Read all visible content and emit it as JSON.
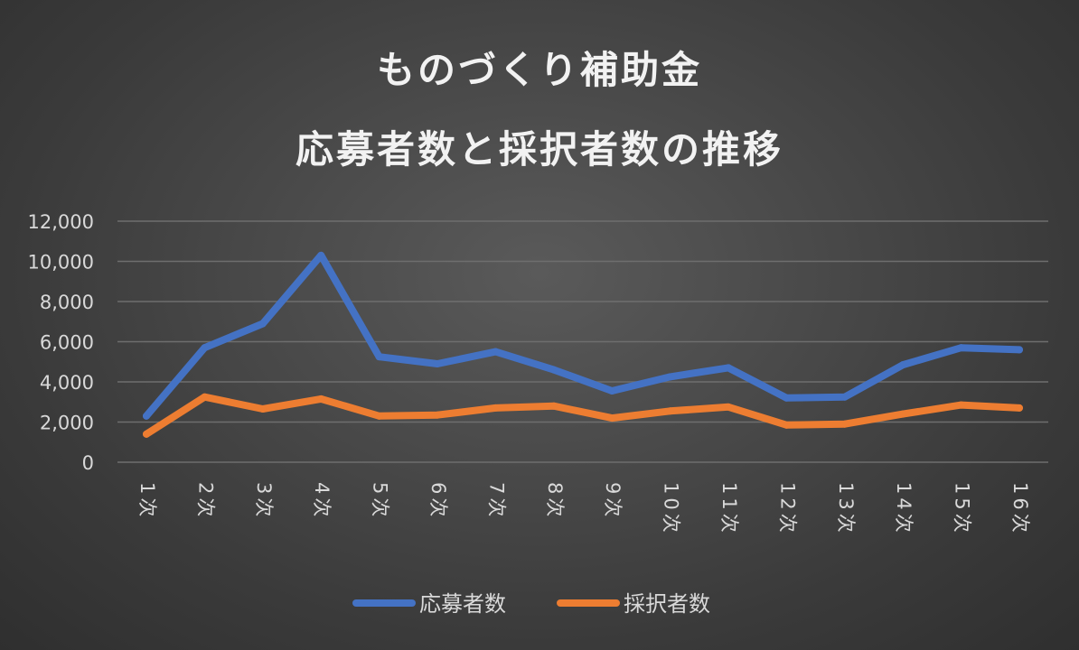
{
  "chart_data": {
    "type": "line",
    "title_lines": [
      "ものづくり補助金",
      "応募者数と採択者数の推移"
    ],
    "categories": [
      "1次",
      "2次",
      "3次",
      "4次",
      "5次",
      "6次",
      "7次",
      "8次",
      "9次",
      "10次",
      "11次",
      "12次",
      "13次",
      "14次",
      "15次",
      "16次"
    ],
    "series": [
      {
        "name": "応募者数",
        "color": "#4472c4",
        "values": [
          2300,
          5700,
          6900,
          10300,
          5250,
          4900,
          5500,
          4600,
          3550,
          4250,
          4700,
          3200,
          3250,
          4850,
          5700,
          5600
        ]
      },
      {
        "name": "採択者数",
        "color": "#ed7d31",
        "values": [
          1400,
          3250,
          2650,
          3150,
          2300,
          2350,
          2700,
          2800,
          2200,
          2550,
          2750,
          1850,
          1900,
          2400,
          2850,
          2700
        ]
      }
    ],
    "ylim": [
      0,
      12000
    ],
    "yticks": [
      0,
      2000,
      4000,
      6000,
      8000,
      10000,
      12000
    ],
    "ytick_labels": [
      "0",
      "2,000",
      "4,000",
      "6,000",
      "8,000",
      "10,000",
      "12,000"
    ],
    "grid": true,
    "legend_position": "bottom"
  }
}
